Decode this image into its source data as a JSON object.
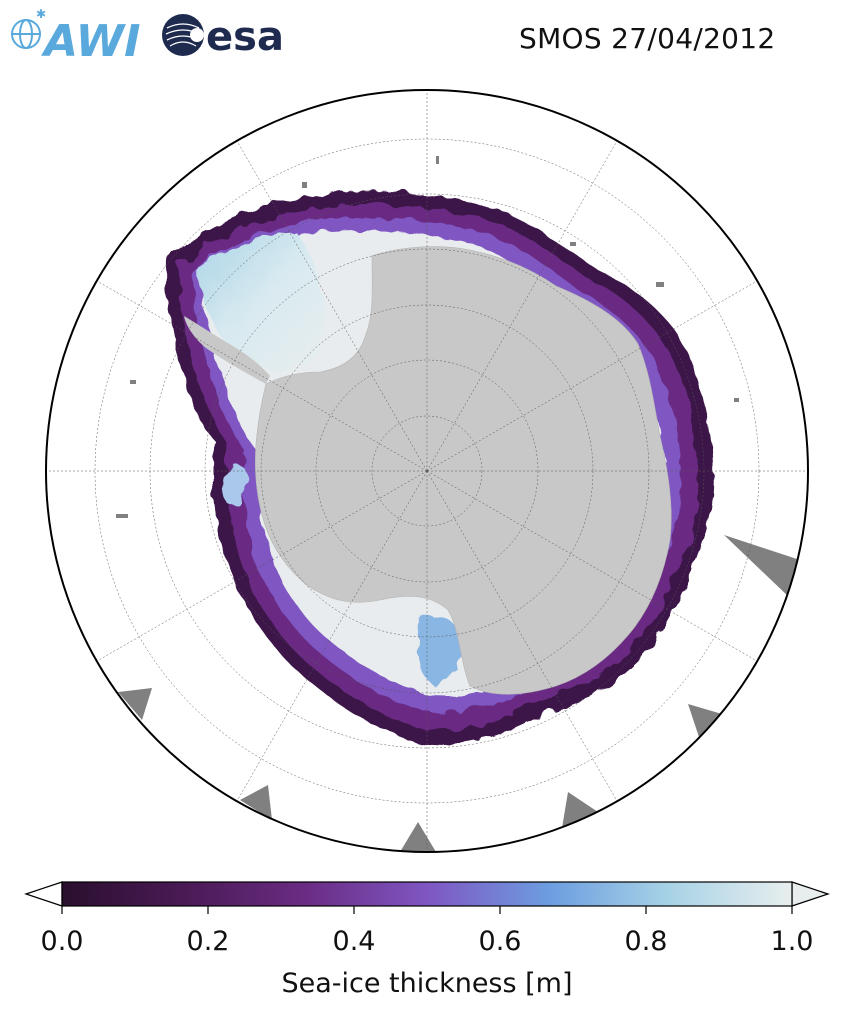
{
  "header": {
    "logo_awi": "AWI",
    "logo_esa": "esa",
    "title": "SMOS 27/04/2012"
  },
  "map": {
    "projection": "south-polar-stereographic",
    "land_color": "#c8c8c8",
    "ocean_color": "#ffffff",
    "no_data_color": "#808080",
    "graticule": true
  },
  "colorbar": {
    "label": "Sea-ice thickness [m]",
    "min": 0.0,
    "max": 1.0,
    "ticks": [
      "0.0",
      "0.2",
      "0.4",
      "0.6",
      "0.8",
      "1.0"
    ],
    "colors": [
      "#2a0f2e",
      "#4a1a55",
      "#6a2c83",
      "#7f56c2",
      "#6c9de0",
      "#a8d3e6",
      "#e8eeee"
    ],
    "extend": "both"
  },
  "colors": {
    "awi_blue": "#5aa9dd",
    "esa_navy": "#1e2b4f"
  }
}
